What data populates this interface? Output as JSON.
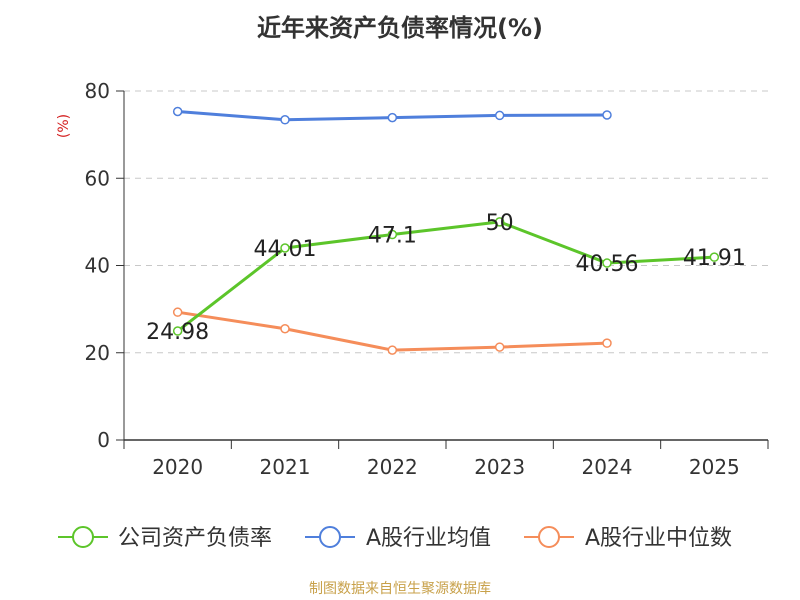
{
  "chart_data": {
    "type": "line",
    "title": "近年来资产负债率情况(%)",
    "ylabel": "(%)",
    "xlabel": "",
    "ylim": [
      0,
      80
    ],
    "yticks": [
      0,
      20,
      40,
      60,
      80
    ],
    "categories": [
      "2020",
      "2021",
      "2022",
      "2023",
      "2024",
      "2025"
    ],
    "grid": true,
    "legend_position": "bottom",
    "series": [
      {
        "name": "公司资产负债率",
        "color": "#5cc52a",
        "values": [
          24.98,
          44.01,
          47.1,
          50,
          40.56,
          41.91
        ],
        "labels": [
          "24.98",
          "44.01",
          "47.1",
          "50",
          "40.56",
          "41.91"
        ]
      },
      {
        "name": "A股行业均值",
        "color": "#4f7fdc",
        "values": [
          75.3,
          73.4,
          73.9,
          74.4,
          74.5,
          null
        ]
      },
      {
        "name": "A股行业中位数",
        "color": "#f58d5a",
        "values": [
          29.3,
          25.5,
          20.6,
          21.3,
          22.2,
          null
        ]
      }
    ]
  },
  "source": {
    "text": "制图数据来自恒生聚源数据库",
    "color": "#c8a14a"
  },
  "ylabel_color": "#d42020"
}
